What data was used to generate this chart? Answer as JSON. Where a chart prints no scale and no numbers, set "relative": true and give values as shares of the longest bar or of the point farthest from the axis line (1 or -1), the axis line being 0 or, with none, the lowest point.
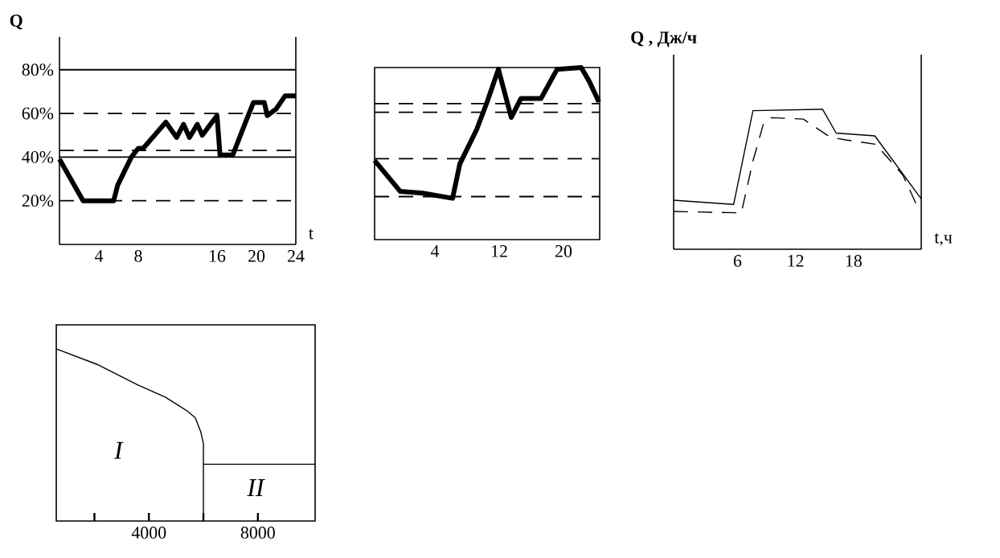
{
  "chart_data": [
    {
      "type": "line",
      "xlabel": "t",
      "ylabel": "Q",
      "xlim": [
        0,
        24
      ],
      "ylim": [
        0,
        95
      ],
      "xticks": [
        4,
        8,
        16,
        20,
        24
      ],
      "yticks": [
        {
          "value": 20,
          "label": "20%"
        },
        {
          "value": 40,
          "label": "40%"
        },
        {
          "value": 60,
          "label": "60%"
        },
        {
          "value": 80,
          "label": "80%"
        }
      ],
      "x": [
        0,
        2.4,
        5.5,
        5.9,
        7.3,
        8,
        8.5,
        10.8,
        11.9,
        12.6,
        13.2,
        14,
        14.5,
        16,
        16.3,
        17.6,
        18.9,
        19.7,
        20.8,
        21.1,
        22,
        22.9,
        24
      ],
      "series": [
        {
          "color": "#000000",
          "values": [
            39,
            20,
            20,
            27,
            40,
            44,
            44,
            56,
            49,
            55,
            49,
            55,
            50,
            59,
            41,
            41,
            56,
            65,
            65,
            59,
            62,
            68,
            68
          ]
        }
      ],
      "ref_lines": [
        {
          "axis": "y",
          "value": 80,
          "line_style": "solid"
        },
        {
          "axis": "y",
          "value": 60,
          "line_style": "dashed"
        },
        {
          "axis": "y",
          "value": 43,
          "line_style": "dashed"
        },
        {
          "axis": "y",
          "value": 40,
          "line_style": "solid"
        },
        {
          "axis": "y",
          "value": 20,
          "line_style": "dashed"
        }
      ]
    },
    {
      "type": "line",
      "relative": true,
      "xlim": [
        -3.5,
        24.5
      ],
      "xticks": [
        4,
        12,
        20
      ],
      "x": [
        -3.5,
        -0.3,
        2.5,
        6.2,
        7.1,
        9.2,
        10.5,
        11.9,
        13.5,
        14.7,
        17.2,
        19.2,
        22.2,
        23.2,
        24.4
      ],
      "series": [
        {
          "color": "#000000",
          "values": [
            0.46,
            0.28,
            0.27,
            0.24,
            0.44,
            0.64,
            0.8,
            0.99,
            0.71,
            0.82,
            0.82,
            0.99,
            1,
            0.92,
            0.8
          ]
        }
      ],
      "ref_lines": [
        {
          "axis": "y",
          "value": 0.79,
          "line_style": "dashed"
        },
        {
          "axis": "y",
          "value": 0.74,
          "line_style": "dashed"
        },
        {
          "axis": "y",
          "value": 0.47,
          "line_style": "dashed"
        },
        {
          "axis": "y",
          "value": 0.25,
          "line_style": "dashed"
        }
      ]
    },
    {
      "type": "line",
      "relative": true,
      "xlabel": "t,ч",
      "ylabel": "Q , Дж/ч",
      "xlim": [
        -0.6,
        25
      ],
      "xticks": [
        6,
        12,
        18
      ],
      "series": [
        {
          "color": "#000000",
          "line_style": "solid",
          "x": [
            -0.6,
            5.6,
            7.6,
            14.8,
            16.2,
            20.2,
            25
          ],
          "values": [
            0.35,
            0.32,
            0.99,
            1,
            0.83,
            0.81,
            0.36
          ]
        },
        {
          "color": "#000000",
          "line_style": "dashed",
          "x": [
            -0.6,
            6.4,
            7.6,
            8.7,
            9.5,
            12.8,
            15.6,
            17.3,
            20.3,
            23.1,
            24.5
          ],
          "values": [
            0.27,
            0.26,
            0.63,
            0.9,
            0.94,
            0.93,
            0.8,
            0.78,
            0.75,
            0.53,
            0.32
          ]
        }
      ]
    },
    {
      "type": "line",
      "relative": true,
      "xlim": [
        600,
        10100
      ],
      "xticks": [
        {
          "value": 2000,
          "label": null
        },
        4000,
        {
          "value": 6000,
          "label": null
        },
        8000
      ],
      "x": [
        600,
        2100,
        3600,
        4600,
        5400,
        5700,
        5900,
        6000,
        6000,
        6000,
        10100
      ],
      "series": [
        {
          "color": "#000000",
          "values": [
            1,
            0.91,
            0.79,
            0.72,
            0.64,
            0.6,
            0.52,
            0.45,
            0,
            0.33,
            0.33
          ]
        }
      ],
      "annotations": [
        "I",
        "II"
      ]
    }
  ]
}
